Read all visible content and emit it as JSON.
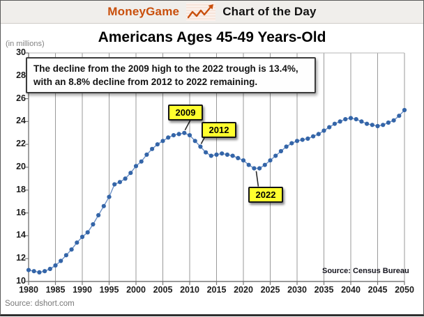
{
  "header": {
    "brand": "MoneyGame",
    "title": "Chart of the Day",
    "icon": "line-chart-up-icon"
  },
  "chart": {
    "title": "Americans Ages 45-49 Years-Old",
    "unit_label": "(in millions)",
    "annotation_line1": "The decline from the 2009 high to the 2022 trough is 13.4%,",
    "annotation_line2": "with an 8.8% decline from 2012 to 2022 remaining.",
    "callouts": [
      {
        "label": "2009",
        "year": 2009,
        "value": 23.0,
        "dir": "above"
      },
      {
        "label": "2012",
        "year": 2012,
        "value": 21.8,
        "dir": "above"
      },
      {
        "label": "2022",
        "year": 2022,
        "value": 19.9,
        "dir": "below"
      }
    ],
    "inner_source": "Source: Census Bureau"
  },
  "footer": {
    "source": "Source: dshort.com"
  },
  "colors": {
    "accent_orange": "#c94f0c",
    "series_dot_blue": "#3465a8",
    "series_line_blue": "#6b8fc4",
    "gridline_gray": "#9a9a9a",
    "axis_gray": "#787878",
    "callout_yellow": "#ffff2e"
  },
  "chart_data": {
    "type": "line",
    "title": "Americans Ages 45-49 Years-Old",
    "ylabel": "(in millions)",
    "xlim": [
      1980,
      2050
    ],
    "ylim": [
      10,
      30
    ],
    "xticks": [
      1980,
      1985,
      1990,
      1995,
      2000,
      2005,
      2010,
      2015,
      2020,
      2025,
      2030,
      2035,
      2040,
      2045,
      2050
    ],
    "yticks": [
      10,
      12,
      14,
      16,
      18,
      20,
      22,
      24,
      26,
      28,
      30
    ],
    "grid": "vertical-only",
    "legend": "none",
    "x": [
      1980,
      1981,
      1982,
      1983,
      1984,
      1985,
      1986,
      1987,
      1988,
      1989,
      1990,
      1991,
      1992,
      1993,
      1994,
      1995,
      1996,
      1997,
      1998,
      1999,
      2000,
      2001,
      2002,
      2003,
      2004,
      2005,
      2006,
      2007,
      2008,
      2009,
      2010,
      2011,
      2012,
      2013,
      2014,
      2015,
      2016,
      2017,
      2018,
      2019,
      2020,
      2021,
      2022,
      2023,
      2024,
      2025,
      2026,
      2027,
      2028,
      2029,
      2030,
      2031,
      2032,
      2033,
      2034,
      2035,
      2036,
      2037,
      2038,
      2039,
      2040,
      2041,
      2042,
      2043,
      2044,
      2045,
      2046,
      2047,
      2048,
      2049,
      2050
    ],
    "values": [
      11.0,
      10.9,
      10.8,
      10.9,
      11.1,
      11.4,
      11.8,
      12.3,
      12.8,
      13.4,
      13.9,
      14.3,
      15.0,
      15.8,
      16.6,
      17.4,
      18.5,
      18.7,
      19.0,
      19.5,
      20.1,
      20.5,
      21.1,
      21.6,
      22.0,
      22.3,
      22.6,
      22.8,
      22.9,
      23.0,
      22.8,
      22.3,
      21.8,
      21.3,
      21.0,
      21.1,
      21.2,
      21.1,
      21.0,
      20.8,
      20.6,
      20.2,
      19.9,
      19.9,
      20.2,
      20.6,
      21.0,
      21.4,
      21.8,
      22.1,
      22.3,
      22.4,
      22.5,
      22.7,
      22.9,
      23.2,
      23.5,
      23.8,
      24.0,
      24.2,
      24.3,
      24.2,
      24.0,
      23.8,
      23.7,
      23.6,
      23.7,
      23.9,
      24.1,
      24.5,
      25.0
    ]
  }
}
